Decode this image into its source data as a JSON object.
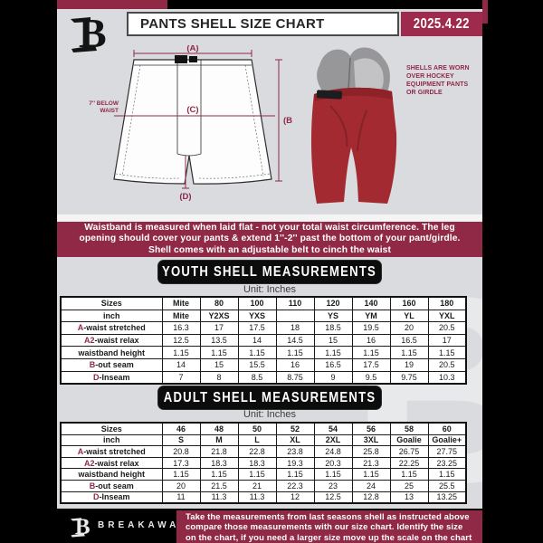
{
  "header": {
    "title": "PANTS SHELL SIZE CHART",
    "date": "2025.4.22"
  },
  "diagram": {
    "label_a": "(A)",
    "label_b": "(B)",
    "label_c": "(C)",
    "label_d": "(D)",
    "waist_note": "7'' BELOW\nWAIST",
    "shell_note": "SHELLS ARE WORN\nOVER HOCKEY\nEQUIPMENT PANTS\nOR GIRDLE"
  },
  "banner": {
    "lines": [
      "Waistband is measured when laid flat - not your total waist circumference. The leg",
      "opening should cover your pants & extend 1''-2'' past the bottom of your pant/girdle.",
      "Shell comes with an adjustable belt to cinch the waist"
    ]
  },
  "youth": {
    "title": "YOUTH SHELL MEASUREMENTS",
    "unit": "Unit: Inches"
  },
  "adult": {
    "title": "ADULT SHELL MEASUREMENTS",
    "unit": "Unit: Inches"
  },
  "tables": {
    "youth": {
      "rows": [
        {
          "prefix": "",
          "label": "Sizes",
          "header": true,
          "values": [
            "Mite",
            "80",
            "100",
            "110",
            "120",
            "140",
            "160",
            "180"
          ]
        },
        {
          "prefix": "",
          "label": "inch",
          "header": true,
          "values": [
            "Mite",
            "Y2XS",
            "YXS",
            "",
            "YS",
            "YM",
            "YL",
            "YXL"
          ]
        },
        {
          "prefix": "A",
          "label": "-waist stretched",
          "header": false,
          "values": [
            "16.3",
            "17",
            "17.5",
            "18",
            "18.5",
            "19.5",
            "20",
            "20.5"
          ]
        },
        {
          "prefix": "A2",
          "label": "-waist relax",
          "header": false,
          "values": [
            "12.5",
            "13.5",
            "14",
            "14.5",
            "15",
            "16",
            "16.5",
            "17"
          ]
        },
        {
          "prefix": "",
          "label": "waistband height",
          "header": false,
          "values": [
            "1.15",
            "1.15",
            "1.15",
            "1.15",
            "1.15",
            "1.15",
            "1.15",
            "1.15"
          ]
        },
        {
          "prefix": "B",
          "label": "-out seam",
          "header": false,
          "values": [
            "14",
            "15",
            "15.5",
            "16",
            "16.5",
            "17.5",
            "19",
            "20.5"
          ]
        },
        {
          "prefix": "D",
          "label": "-Inseam",
          "header": false,
          "values": [
            "7",
            "8",
            "8.5",
            "8.75",
            "9",
            "9.5",
            "9.75",
            "10.3"
          ]
        }
      ]
    },
    "adult": {
      "rows": [
        {
          "prefix": "",
          "label": "Sizes",
          "header": true,
          "values": [
            "46",
            "48",
            "50",
            "52",
            "54",
            "56",
            "58",
            "60"
          ]
        },
        {
          "prefix": "",
          "label": "inch",
          "header": true,
          "values": [
            "S",
            "M",
            "L",
            "XL",
            "2XL",
            "3XL",
            "Goalie",
            "Goalie+"
          ]
        },
        {
          "prefix": "A",
          "label": "-waist stretched",
          "header": false,
          "values": [
            "20.8",
            "21.8",
            "22.8",
            "23.8",
            "24.8",
            "25.8",
            "26.75",
            "27.75"
          ]
        },
        {
          "prefix": "A2",
          "label": "-waist relax",
          "header": false,
          "values": [
            "17.3",
            "18.3",
            "18.3",
            "19.3",
            "20.3",
            "21.3",
            "22.25",
            "23.25"
          ]
        },
        {
          "prefix": "",
          "label": "waistband height",
          "header": false,
          "values": [
            "1.15",
            "1.15",
            "1.15",
            "1.15",
            "1.15",
            "1.15",
            "1.15",
            "1.15"
          ]
        },
        {
          "prefix": "B",
          "label": "-out seam",
          "header": false,
          "values": [
            "20",
            "21.5",
            "21",
            "22.3",
            "23",
            "24",
            "25",
            "25.5"
          ]
        },
        {
          "prefix": "D",
          "label": "-Inseam",
          "header": false,
          "values": [
            "11",
            "11.3",
            "11.3",
            "12",
            "12.5",
            "12.8",
            "13",
            "13.25"
          ]
        }
      ]
    }
  },
  "footer": {
    "brand": "BREAKAWAY",
    "note_lines": [
      "Take the measurements from last seasons shell as instructed above",
      "compare those measurements  with our size chart. Identify the size",
      "on the chart, if you need a larger size move up the scale on the chart"
    ]
  },
  "colors": {
    "maroon": "#8f2946",
    "date_box": "#9e2b4e",
    "page_gray": "#dadbde",
    "shell_red": "#a22a30",
    "pad_gray": "#97979a"
  },
  "watermark_glyph": "B"
}
